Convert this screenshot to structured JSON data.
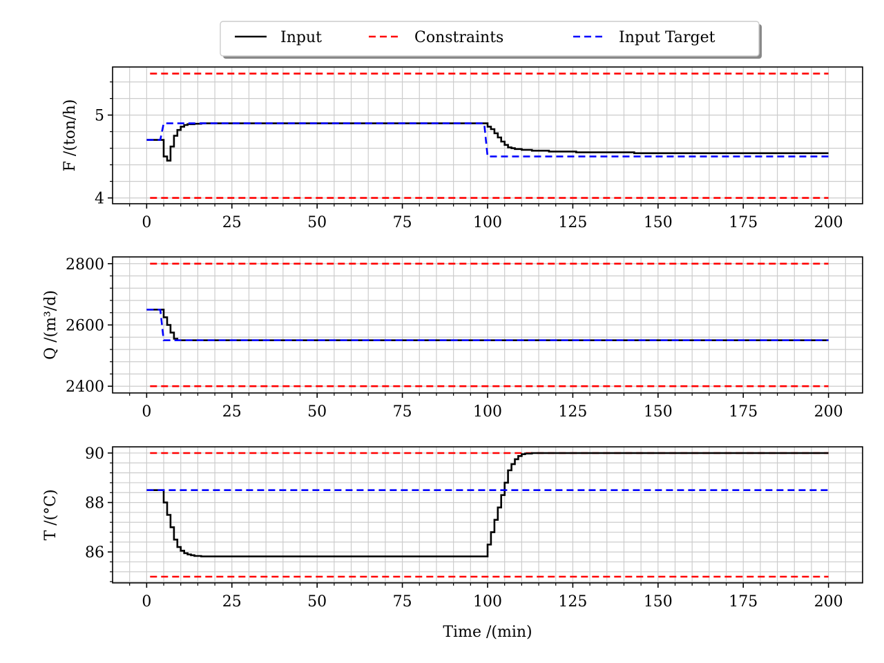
{
  "legend": {
    "entries": [
      {
        "label": "Input",
        "color": "#000000",
        "dash": "solid"
      },
      {
        "label": "Constraints",
        "color": "#ff0000",
        "dash": "dashed"
      },
      {
        "label": "Input Target",
        "color": "#0000ff",
        "dash": "dashed"
      }
    ],
    "placement": "top-center"
  },
  "xlabel": "Time /(min)",
  "chart_data": [
    {
      "type": "line",
      "ylabel": "F /(ton/h)",
      "xlim": [
        -10,
        210
      ],
      "ylim": [
        3.93,
        5.58
      ],
      "xticks": [
        0,
        25,
        50,
        75,
        100,
        125,
        150,
        175,
        200
      ],
      "yticks": [
        4,
        5
      ],
      "grid": true,
      "series": [
        {
          "name": "Input",
          "color": "#000000",
          "dash": "solid",
          "step": true,
          "x": [
            0,
            5,
            6,
            7,
            8,
            9,
            10,
            11,
            12,
            14,
            16,
            100,
            101,
            102,
            103,
            104,
            105,
            106,
            107,
            108,
            110,
            113,
            118,
            126,
            143,
            200
          ],
          "y": [
            4.7,
            4.5,
            4.45,
            4.62,
            4.75,
            4.82,
            4.86,
            4.88,
            4.89,
            4.895,
            4.9,
            4.86,
            4.83,
            4.78,
            4.73,
            4.68,
            4.64,
            4.61,
            4.6,
            4.59,
            4.58,
            4.57,
            4.56,
            4.55,
            4.54,
            4.54
          ]
        },
        {
          "name": "Constraints",
          "color": "#ff0000",
          "dash": "dashed",
          "x": [
            1,
            200
          ],
          "y": [
            5.5,
            5.5
          ]
        },
        {
          "name": "Constraints",
          "color": "#ff0000",
          "dash": "dashed",
          "x": [
            1,
            200
          ],
          "y": [
            4.0,
            4.0
          ]
        },
        {
          "name": "Input Target",
          "color": "#0000ff",
          "dash": "dashed",
          "x": [
            0,
            4,
            5,
            99,
            100,
            200
          ],
          "y": [
            4.7,
            4.7,
            4.9,
            4.9,
            4.5,
            4.5
          ]
        }
      ]
    },
    {
      "type": "line",
      "ylabel": "Q /(m³/d)",
      "xlim": [
        -10,
        210
      ],
      "ylim": [
        2378,
        2822
      ],
      "xticks": [
        0,
        25,
        50,
        75,
        100,
        125,
        150,
        175,
        200
      ],
      "yticks": [
        2400,
        2600,
        2800
      ],
      "grid": true,
      "series": [
        {
          "name": "Input",
          "color": "#000000",
          "dash": "solid",
          "step": true,
          "x": [
            0,
            5,
            6,
            7,
            8,
            9,
            200
          ],
          "y": [
            2650,
            2625,
            2600,
            2575,
            2555,
            2550,
            2550
          ]
        },
        {
          "name": "Constraints",
          "color": "#ff0000",
          "dash": "dashed",
          "x": [
            1,
            200
          ],
          "y": [
            2800,
            2800
          ]
        },
        {
          "name": "Constraints",
          "color": "#ff0000",
          "dash": "dashed",
          "x": [
            1,
            200
          ],
          "y": [
            2400,
            2400
          ]
        },
        {
          "name": "Input Target",
          "color": "#0000ff",
          "dash": "dashed",
          "x": [
            0,
            4,
            5,
            200
          ],
          "y": [
            2650,
            2650,
            2550,
            2550
          ]
        }
      ]
    },
    {
      "type": "line",
      "ylabel": "T /(°C)",
      "xlim": [
        -10,
        210
      ],
      "ylim": [
        84.75,
        90.25
      ],
      "xticks": [
        0,
        25,
        50,
        75,
        100,
        125,
        150,
        175,
        200
      ],
      "yticks": [
        86,
        88,
        90
      ],
      "grid": true,
      "series": [
        {
          "name": "Input",
          "color": "#000000",
          "dash": "solid",
          "step": true,
          "x": [
            0,
            5,
            6,
            7,
            8,
            9,
            10,
            11,
            12,
            13,
            14,
            16,
            100,
            101,
            102,
            103,
            104,
            105,
            106,
            107,
            108,
            109,
            110,
            111,
            113,
            200
          ],
          "y": [
            88.5,
            88.0,
            87.5,
            87.0,
            86.5,
            86.2,
            86.05,
            85.95,
            85.9,
            85.87,
            85.84,
            85.82,
            86.3,
            86.8,
            87.3,
            87.8,
            88.3,
            88.8,
            89.3,
            89.55,
            89.75,
            89.88,
            89.95,
            89.98,
            90.0,
            90.0
          ]
        },
        {
          "name": "Constraints",
          "color": "#ff0000",
          "dash": "dashed",
          "x": [
            1,
            200
          ],
          "y": [
            90.0,
            90.0
          ]
        },
        {
          "name": "Constraints",
          "color": "#ff0000",
          "dash": "dashed",
          "x": [
            1,
            200
          ],
          "y": [
            85.0,
            85.0
          ]
        },
        {
          "name": "Input Target",
          "color": "#0000ff",
          "dash": "dashed",
          "x": [
            0,
            200
          ],
          "y": [
            88.5,
            88.5
          ]
        }
      ]
    }
  ]
}
